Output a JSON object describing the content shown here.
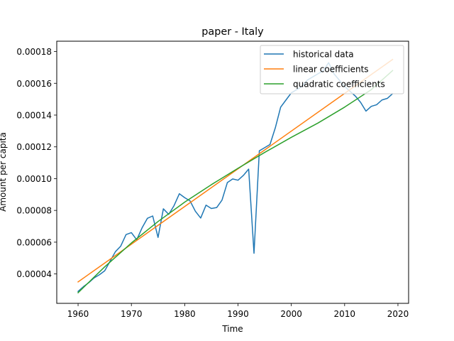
{
  "chart_data": {
    "type": "line",
    "title": "paper - Italy",
    "xlabel": "Time",
    "ylabel": "Amount per capita",
    "xlim": [
      1956,
      2022
    ],
    "ylim": [
      2.15e-05,
      0.0001865
    ],
    "x_ticks": [
      1960,
      1970,
      1980,
      1990,
      2000,
      2010,
      2020
    ],
    "y_ticks": [
      4e-05,
      6e-05,
      8e-05,
      0.0001,
      0.00012,
      0.00014,
      0.00016,
      0.00018
    ],
    "y_tick_labels": [
      "0.00004",
      "0.00006",
      "0.00008",
      "0.00010",
      "0.00012",
      "0.00014",
      "0.00016",
      "0.00018"
    ],
    "legend_position": "top-right",
    "grid": false,
    "series": [
      {
        "name": "historical data",
        "color": "#1f77b4",
        "x": [
          1960,
          1961,
          1962,
          1963,
          1964,
          1965,
          1966,
          1967,
          1968,
          1969,
          1970,
          1971,
          1972,
          1973,
          1974,
          1975,
          1976,
          1977,
          1978,
          1979,
          1980,
          1981,
          1982,
          1983,
          1984,
          1985,
          1986,
          1987,
          1988,
          1989,
          1990,
          1991,
          1992,
          1993,
          1994,
          1995,
          1996,
          1997,
          1998,
          1999,
          2000,
          2001,
          2002,
          2003,
          2004,
          2005,
          2006,
          2007,
          2008,
          2009,
          2010,
          2011,
          2012,
          2013,
          2014,
          2015,
          2016,
          2017,
          2018,
          2019
        ],
        "y": [
          2.9e-05,
          3.2e-05,
          3.45e-05,
          3.75e-05,
          3.95e-05,
          4.2e-05,
          4.8e-05,
          5.4e-05,
          5.75e-05,
          6.48e-05,
          6.6e-05,
          6.15e-05,
          6.9e-05,
          7.5e-05,
          7.65e-05,
          6.3e-05,
          8.1e-05,
          7.75e-05,
          8.3e-05,
          9.05e-05,
          8.8e-05,
          8.6e-05,
          7.95e-05,
          7.52e-05,
          8.33e-05,
          8.12e-05,
          8.18e-05,
          8.65e-05,
          9.75e-05,
          9.98e-05,
          9.9e-05,
          0.000102,
          0.000106,
          5.3e-05,
          0.0001175,
          0.0001195,
          0.0001215,
          0.000132,
          0.000145,
          0.0001495,
          0.000154,
          0.000156,
          0.000158,
          0.000162,
          0.000164,
          0.000166,
          0.000168,
          0.000173,
          0.000166,
          0.000162,
          0.000158,
          0.000155,
          0.000152,
          0.000148,
          0.0001425,
          0.0001455,
          0.0001465,
          0.0001495,
          0.0001505,
          0.0001535
        ]
      },
      {
        "name": "linear coefficients",
        "color": "#ff7f0e",
        "x": [
          1960,
          2019
        ],
        "y": [
          3.5e-05,
          0.000175
        ]
      },
      {
        "name": "quadratic coefficients",
        "color": "#2ca02c",
        "x": [
          1960,
          1965,
          1970,
          1975,
          1980,
          1985,
          1990,
          1995,
          2000,
          2005,
          2010,
          2015,
          2019
        ],
        "y": [
          2.82e-05,
          4.45e-05,
          5.95e-05,
          7.3e-05,
          8.52e-05,
          9.62e-05,
          0.0001065,
          0.0001165,
          0.000126,
          0.000135,
          0.000145,
          0.000156,
          0.000168
        ]
      }
    ]
  }
}
